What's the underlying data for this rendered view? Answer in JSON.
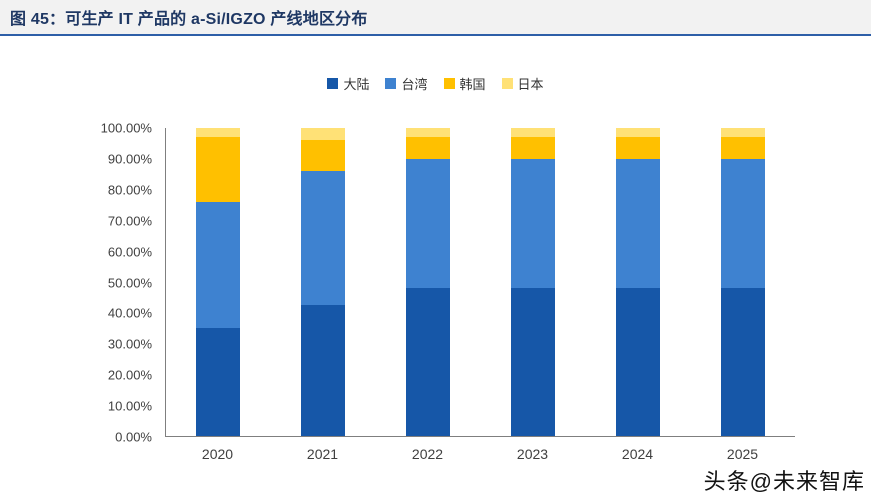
{
  "header": {
    "title": "图 45：可生产 IT 产品的 a-Si/IGZO 产线地区分布",
    "accent_color": "#2E5FA8",
    "title_color": "#1F3864"
  },
  "watermark": {
    "text": "头条@未来智库"
  },
  "chart_data": {
    "type": "bar",
    "subtype": "stacked-100-percent",
    "title": "可生产 IT 产品的 a-Si/IGZO 产线地区分布",
    "categories": [
      "2020",
      "2021",
      "2022",
      "2023",
      "2024",
      "2025"
    ],
    "series": [
      {
        "name": "大陆",
        "color": "#1657A8",
        "values": [
          35,
          42.5,
          48,
          48,
          48,
          48
        ]
      },
      {
        "name": "台湾",
        "color": "#3E82D0",
        "values": [
          41,
          43.5,
          42,
          42,
          42,
          42
        ]
      },
      {
        "name": "韩国",
        "color": "#FFC000",
        "values": [
          21,
          10,
          7,
          7,
          7,
          7
        ]
      },
      {
        "name": "日本",
        "color": "#FFE176",
        "values": [
          3,
          4,
          3,
          3,
          3,
          3
        ]
      }
    ],
    "xlabel": "",
    "ylabel": "",
    "ylim": [
      0,
      100
    ],
    "yticks": [
      "100.00%",
      "90.00%",
      "80.00%",
      "70.00%",
      "60.00%",
      "50.00%",
      "40.00%",
      "30.00%",
      "20.00%",
      "10.00%",
      "0.00%"
    ],
    "grid": false,
    "legend_position": "top"
  }
}
